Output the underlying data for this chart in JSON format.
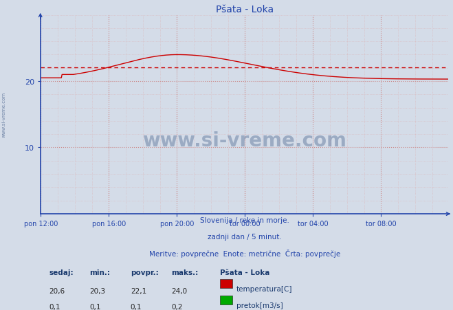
{
  "title": "Pšata - Loka",
  "bg_color": "#d4dce8",
  "plot_bg_color": "#d4dce8",
  "line_color": "#cc0000",
  "avg_line_color": "#cc0000",
  "avg_value": 22.1,
  "y_min": 0,
  "y_max": 30,
  "y_ticks": [
    10,
    20
  ],
  "x_tick_labels": [
    "pon 12:00",
    "pon 16:00",
    "pon 20:00",
    "tor 00:00",
    "tor 04:00",
    "tor 08:00"
  ],
  "x_tick_positions": [
    0,
    96,
    192,
    288,
    384,
    480
  ],
  "total_points": 576,
  "subtitle1": "Slovenija / reke in morje.",
  "subtitle2": "zadnji dan / 5 minut.",
  "subtitle3": "Meritve: povprečne  Enote: metrične  Črta: povprečje",
  "legend_title": "Pšata - Loka",
  "legend_items": [
    "temperatura[C]",
    "pretok[m3/s]"
  ],
  "legend_colors": [
    "#cc0000",
    "#00aa00"
  ],
  "table_headers": [
    "sedaj:",
    "min.:",
    "povpr.:",
    "maks.:"
  ],
  "table_data": [
    [
      "20,6",
      "20,3",
      "22,1",
      "24,0"
    ],
    [
      "0,1",
      "0,1",
      "0,1",
      "0,2"
    ]
  ],
  "watermark_text": "www.si-vreme.com",
  "watermark_color": "#1a3a6e",
  "sidebar_text": "www.si-vreme.com",
  "sidebar_color": "#1a3a6e",
  "axis_color": "#2244aa",
  "text_color": "#2244aa",
  "grid_color": "#cc8888",
  "grid_minor_color": "#ddaaaa"
}
